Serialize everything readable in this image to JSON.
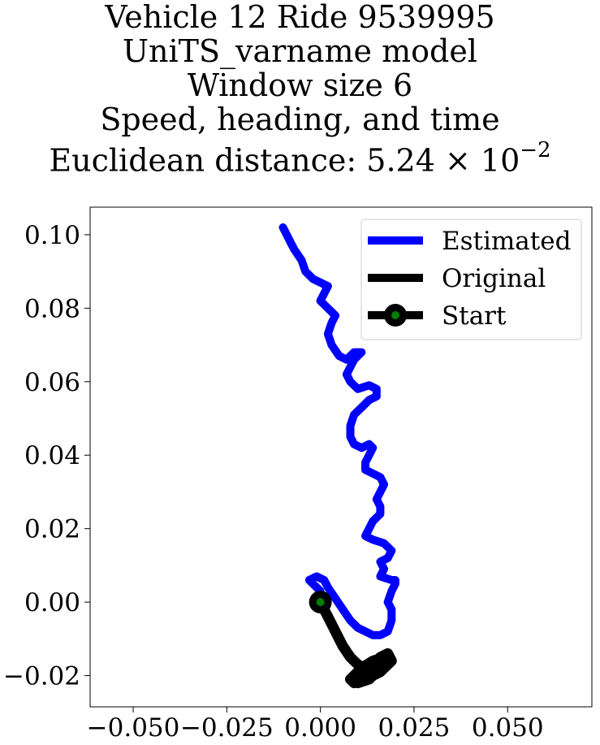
{
  "chart_data": {
    "type": "line",
    "title_lines": [
      "Vehicle 12 Ride 9539995",
      "UniTS_varname model",
      "Window size 6",
      "Speed, heading, and time"
    ],
    "distance": {
      "prefix": "Euclidean distance: 5.24",
      "times": "×",
      "base": "10",
      "exponent": "−2"
    },
    "xlim": [
      -0.0615,
      0.0725
    ],
    "ylim": [
      -0.0285,
      0.1075
    ],
    "x_ticks": [
      -0.05,
      -0.025,
      0.0,
      0.025,
      0.05
    ],
    "x_tick_labels": [
      "−0.050",
      "−0.025",
      "0.000",
      "0.025",
      "0.050"
    ],
    "y_ticks": [
      -0.02,
      0.0,
      0.02,
      0.04,
      0.06,
      0.08,
      0.1
    ],
    "y_tick_labels": [
      "−0.02",
      "0.00",
      "0.02",
      "0.04",
      "0.06",
      "0.08",
      "0.10"
    ],
    "grid": false,
    "legend_position": "top-right",
    "series": [
      {
        "name": "Estimated",
        "color": "#0000ff",
        "x": [
          0.0,
          -0.002,
          -0.003,
          -0.001,
          0.001,
          0.002,
          0.004,
          0.006,
          0.008,
          0.01,
          0.012,
          0.014,
          0.016,
          0.018,
          0.019,
          0.019,
          0.018,
          0.019,
          0.02,
          0.02,
          0.019,
          0.016,
          0.017,
          0.016,
          0.018,
          0.019,
          0.017,
          0.014,
          0.012,
          0.013,
          0.014,
          0.016,
          0.016,
          0.015,
          0.016,
          0.017,
          0.016,
          0.014,
          0.012,
          0.012,
          0.013,
          0.014,
          0.013,
          0.011,
          0.009,
          0.008,
          0.008,
          0.009,
          0.011,
          0.013,
          0.015,
          0.015,
          0.013,
          0.01,
          0.008,
          0.007,
          0.008,
          0.009,
          0.01,
          0.011,
          0.009,
          0.007,
          0.005,
          0.003,
          0.002,
          0.003,
          0.004,
          0.002,
          0.0,
          0.001,
          0.002,
          0.0,
          -0.002,
          -0.003,
          -0.004,
          -0.005,
          -0.007,
          -0.008,
          -0.009,
          -0.01
        ],
        "y": [
          0.003,
          0.005,
          0.006,
          0.007,
          0.006,
          0.004,
          0.001,
          -0.002,
          -0.005,
          -0.007,
          -0.008,
          -0.009,
          -0.009,
          -0.008,
          -0.005,
          -0.002,
          0.0,
          0.003,
          0.005,
          0.006,
          0.006,
          0.007,
          0.009,
          0.011,
          0.012,
          0.014,
          0.016,
          0.017,
          0.018,
          0.02,
          0.022,
          0.024,
          0.026,
          0.028,
          0.03,
          0.032,
          0.034,
          0.035,
          0.036,
          0.038,
          0.04,
          0.042,
          0.043,
          0.042,
          0.043,
          0.045,
          0.048,
          0.051,
          0.053,
          0.055,
          0.056,
          0.058,
          0.059,
          0.058,
          0.06,
          0.062,
          0.064,
          0.066,
          0.067,
          0.068,
          0.068,
          0.066,
          0.067,
          0.07,
          0.073,
          0.076,
          0.078,
          0.08,
          0.082,
          0.084,
          0.086,
          0.087,
          0.088,
          0.089,
          0.09,
          0.093,
          0.096,
          0.098,
          0.1,
          0.102
        ]
      },
      {
        "name": "Original",
        "color": "#000000",
        "x": [
          0.0,
          0.002,
          0.004,
          0.006,
          0.008,
          0.01,
          0.012,
          0.014,
          0.016,
          0.018,
          0.019,
          0.017,
          0.015,
          0.012,
          0.01,
          0.008,
          0.009,
          0.011,
          0.014,
          0.016,
          0.018,
          0.017,
          0.014,
          0.011,
          0.009,
          0.008,
          0.01,
          0.013,
          0.015,
          0.012,
          0.009
        ],
        "y": [
          0.0,
          -0.004,
          -0.008,
          -0.012,
          -0.015,
          -0.017,
          -0.018,
          -0.017,
          -0.015,
          -0.014,
          -0.016,
          -0.018,
          -0.019,
          -0.019,
          -0.02,
          -0.021,
          -0.022,
          -0.021,
          -0.02,
          -0.019,
          -0.017,
          -0.015,
          -0.016,
          -0.018,
          -0.02,
          -0.021,
          -0.022,
          -0.021,
          -0.019,
          -0.018,
          -0.02
        ]
      }
    ],
    "start": {
      "name": "Start",
      "x": 0.0,
      "y": 0.0,
      "marker_color": "#008000",
      "edge_color": "#000000"
    }
  }
}
